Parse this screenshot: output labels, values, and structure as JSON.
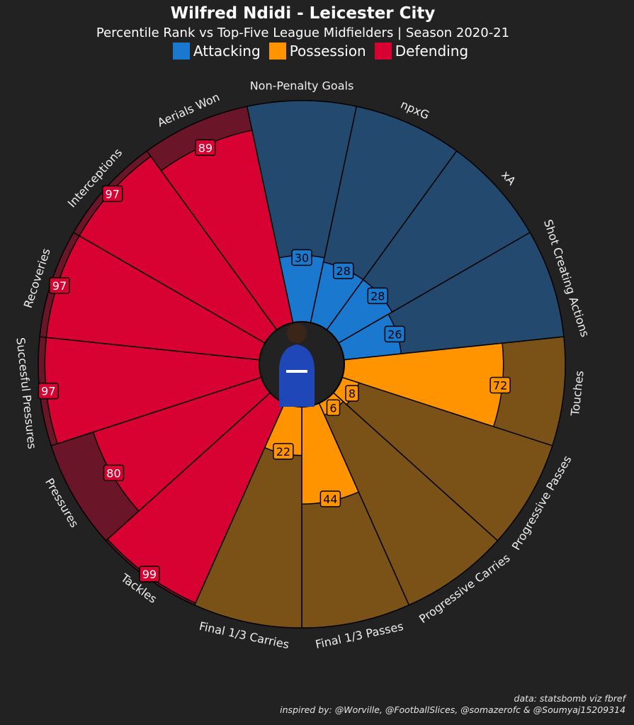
{
  "header": {
    "title": "Wilfred Ndidi - Leicester City",
    "subtitle": "Percentile Rank vs Top-Five League Midfielders | Season 2020-21"
  },
  "legend": [
    {
      "label": "Attacking",
      "color": "#1a78cf"
    },
    {
      "label": "Possession",
      "color": "#ff9300"
    },
    {
      "label": "Defending",
      "color": "#d70232"
    }
  ],
  "colors": {
    "background": "#222222",
    "attacking_fill": "#1a78cf",
    "attacking_bg": "#234a6e",
    "possession_fill": "#ff9300",
    "possession_bg": "#7a5218",
    "defending_fill": "#d70232",
    "defending_bg": "#6b1529"
  },
  "chart_data": {
    "type": "radial-bar",
    "title": "Wilfred Ndidi - Leicester City",
    "ylim": [
      0,
      100
    ],
    "categories": [
      "Non-Penalty Goals",
      "npxG",
      "xA",
      "Shot Creating Actions",
      "Touches",
      "Progressive Passes",
      "Progressive Carries",
      "Final 1/3 Passes",
      "Final 1/3 Carries",
      "Tackles",
      "Pressures",
      "Succesful Pressures",
      "Recoveries",
      "Interceptions",
      "Aerials Won"
    ],
    "values": [
      30,
      28,
      28,
      26,
      72,
      8,
      6,
      44,
      22,
      99,
      80,
      97,
      97,
      97,
      89
    ],
    "groups": [
      "Attacking",
      "Attacking",
      "Attacking",
      "Attacking",
      "Possession",
      "Possession",
      "Possession",
      "Possession",
      "Possession",
      "Defending",
      "Defending",
      "Defending",
      "Defending",
      "Defending",
      "Defending"
    ]
  },
  "center_image": {
    "label": "player-photo"
  },
  "credits": {
    "data_source": "data: statsbomb viz fbref",
    "inspired_by": "inspired by: @Worville, @FootballSlices, @somazerofc & @Soumyaj15209314"
  }
}
